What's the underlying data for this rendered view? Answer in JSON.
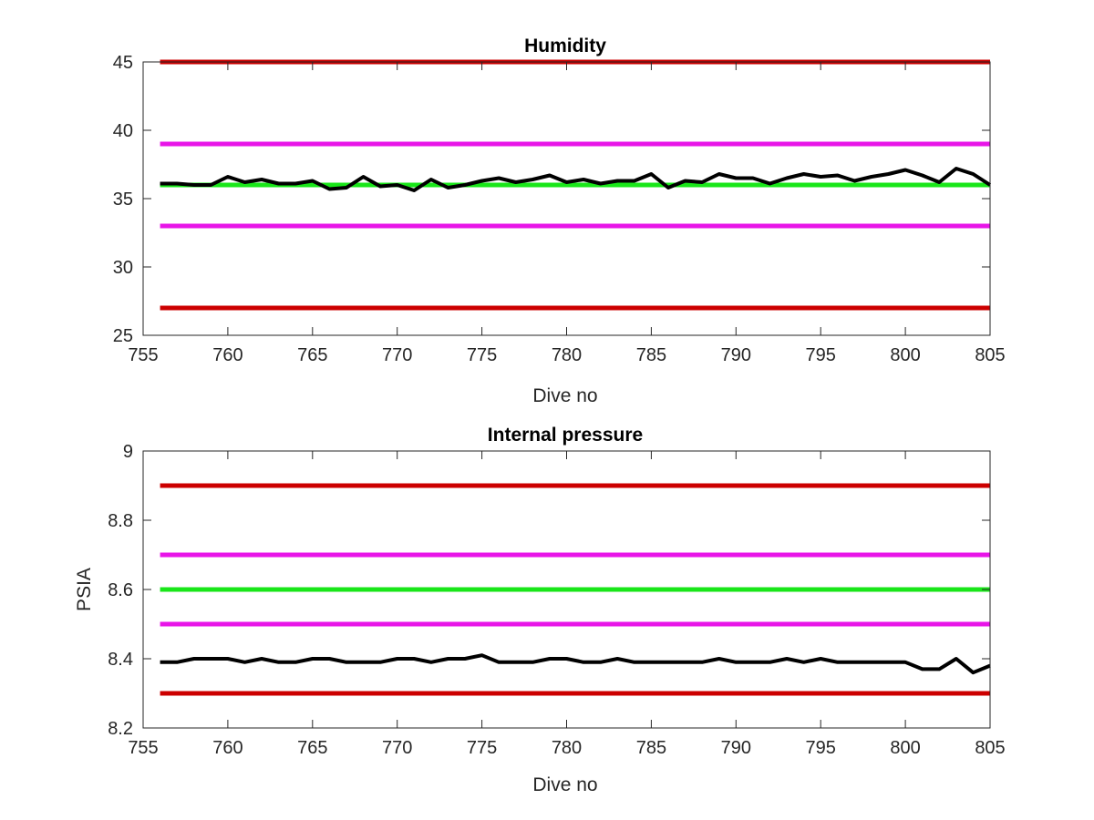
{
  "chart_data": [
    {
      "type": "line",
      "title": "Humidity",
      "xlabel": "Dive no",
      "ylabel": "",
      "xlim": [
        755,
        805
      ],
      "ylim": [
        25,
        45
      ],
      "xticks": [
        755,
        760,
        765,
        770,
        775,
        780,
        785,
        790,
        795,
        800,
        805
      ],
      "yticks": [
        25,
        30,
        35,
        40,
        45
      ],
      "grid": false,
      "limit_lines": [
        {
          "value": 45,
          "color": "#cc0000",
          "x": [
            756,
            805
          ]
        },
        {
          "value": 39,
          "color": "#e815e8",
          "x": [
            756,
            805
          ]
        },
        {
          "value": 36,
          "color": "#19e619",
          "x": [
            756,
            805
          ]
        },
        {
          "value": 33,
          "color": "#e815e8",
          "x": [
            756,
            805
          ]
        },
        {
          "value": 27,
          "color": "#cc0000",
          "x": [
            756,
            805
          ]
        }
      ],
      "series": [
        {
          "color": "#000000",
          "x": [
            756,
            757,
            758,
            759,
            760,
            761,
            762,
            763,
            764,
            765,
            766,
            767,
            768,
            769,
            770,
            771,
            772,
            773,
            774,
            775,
            776,
            777,
            778,
            779,
            780,
            781,
            782,
            783,
            784,
            785,
            786,
            787,
            788,
            789,
            790,
            791,
            792,
            793,
            794,
            795,
            796,
            797,
            798,
            799,
            800,
            801,
            802,
            803,
            804,
            805
          ],
          "values": [
            36.1,
            36.1,
            36.0,
            36.0,
            36.6,
            36.2,
            36.4,
            36.1,
            36.1,
            36.3,
            35.7,
            35.8,
            36.6,
            35.9,
            36.0,
            35.6,
            36.4,
            35.8,
            36.0,
            36.3,
            36.5,
            36.2,
            36.4,
            36.7,
            36.2,
            36.4,
            36.1,
            36.3,
            36.3,
            36.8,
            35.8,
            36.3,
            36.2,
            36.8,
            36.5,
            36.5,
            36.1,
            36.5,
            36.8,
            36.6,
            36.7,
            36.3,
            36.6,
            36.8,
            37.1,
            36.7,
            36.2,
            37.2,
            36.8,
            36.0
          ]
        }
      ]
    },
    {
      "type": "line",
      "title": "Internal pressure",
      "xlabel": "Dive no",
      "ylabel": "PSIA",
      "xlim": [
        755,
        805
      ],
      "ylim": [
        8.2,
        9
      ],
      "xticks": [
        755,
        760,
        765,
        770,
        775,
        780,
        785,
        790,
        795,
        800,
        805
      ],
      "yticks": [
        8.2,
        8.4,
        8.6,
        8.8,
        9
      ],
      "grid": false,
      "limit_lines": [
        {
          "value": 8.9,
          "color": "#cc0000",
          "x": [
            756,
            805
          ]
        },
        {
          "value": 8.7,
          "color": "#e815e8",
          "x": [
            756,
            805
          ]
        },
        {
          "value": 8.6,
          "color": "#19e619",
          "x": [
            756,
            805
          ]
        },
        {
          "value": 8.5,
          "color": "#e815e8",
          "x": [
            756,
            805
          ]
        },
        {
          "value": 8.3,
          "color": "#cc0000",
          "x": [
            756,
            805
          ]
        }
      ],
      "series": [
        {
          "color": "#000000",
          "x": [
            756,
            757,
            758,
            759,
            760,
            761,
            762,
            763,
            764,
            765,
            766,
            767,
            768,
            769,
            770,
            771,
            772,
            773,
            774,
            775,
            776,
            777,
            778,
            779,
            780,
            781,
            782,
            783,
            784,
            785,
            786,
            787,
            788,
            789,
            790,
            791,
            792,
            793,
            794,
            795,
            796,
            797,
            798,
            799,
            800,
            801,
            802,
            803,
            804,
            805
          ],
          "values": [
            8.39,
            8.39,
            8.4,
            8.4,
            8.4,
            8.39,
            8.4,
            8.39,
            8.39,
            8.4,
            8.4,
            8.39,
            8.39,
            8.39,
            8.4,
            8.4,
            8.39,
            8.4,
            8.4,
            8.41,
            8.39,
            8.39,
            8.39,
            8.4,
            8.4,
            8.39,
            8.39,
            8.4,
            8.39,
            8.39,
            8.39,
            8.39,
            8.39,
            8.4,
            8.39,
            8.39,
            8.39,
            8.4,
            8.39,
            8.4,
            8.39,
            8.39,
            8.39,
            8.39,
            8.39,
            8.37,
            8.37,
            8.4,
            8.36,
            8.38
          ]
        }
      ]
    }
  ]
}
